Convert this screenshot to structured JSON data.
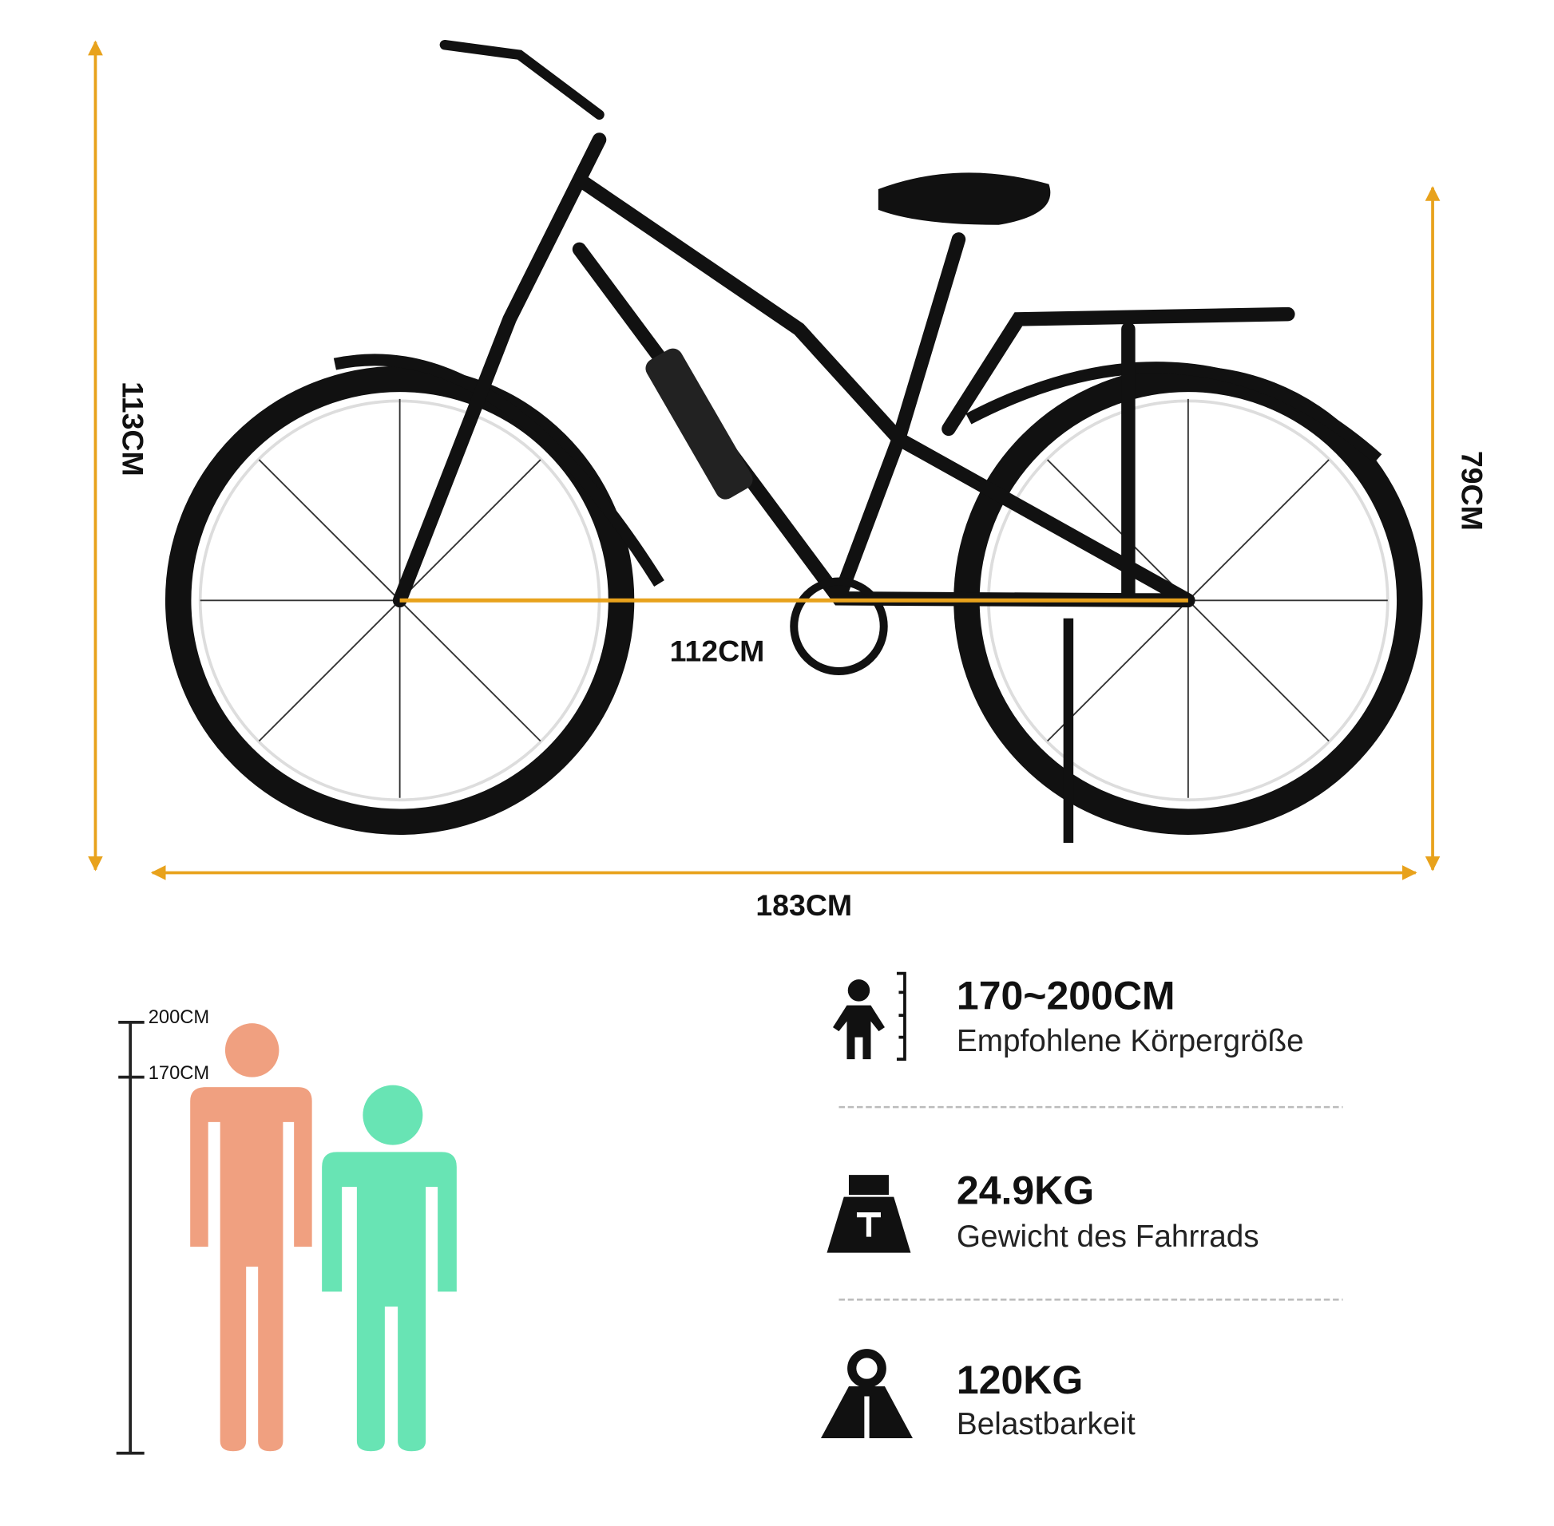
{
  "dimensions": {
    "overall_height": "113CM",
    "seat_height": "79CM",
    "wheelbase": "112CM",
    "overall_length": "183CM"
  },
  "height_scale": [
    "200CM",
    "170CM"
  ],
  "specs": [
    {
      "value": "170~200CM",
      "label": "Empfohlene Körpergröße"
    },
    {
      "value": "24.9KG",
      "label": "Gewicht des Fahrrads"
    },
    {
      "value": "120KG",
      "label": "Belastbarkeit"
    }
  ]
}
